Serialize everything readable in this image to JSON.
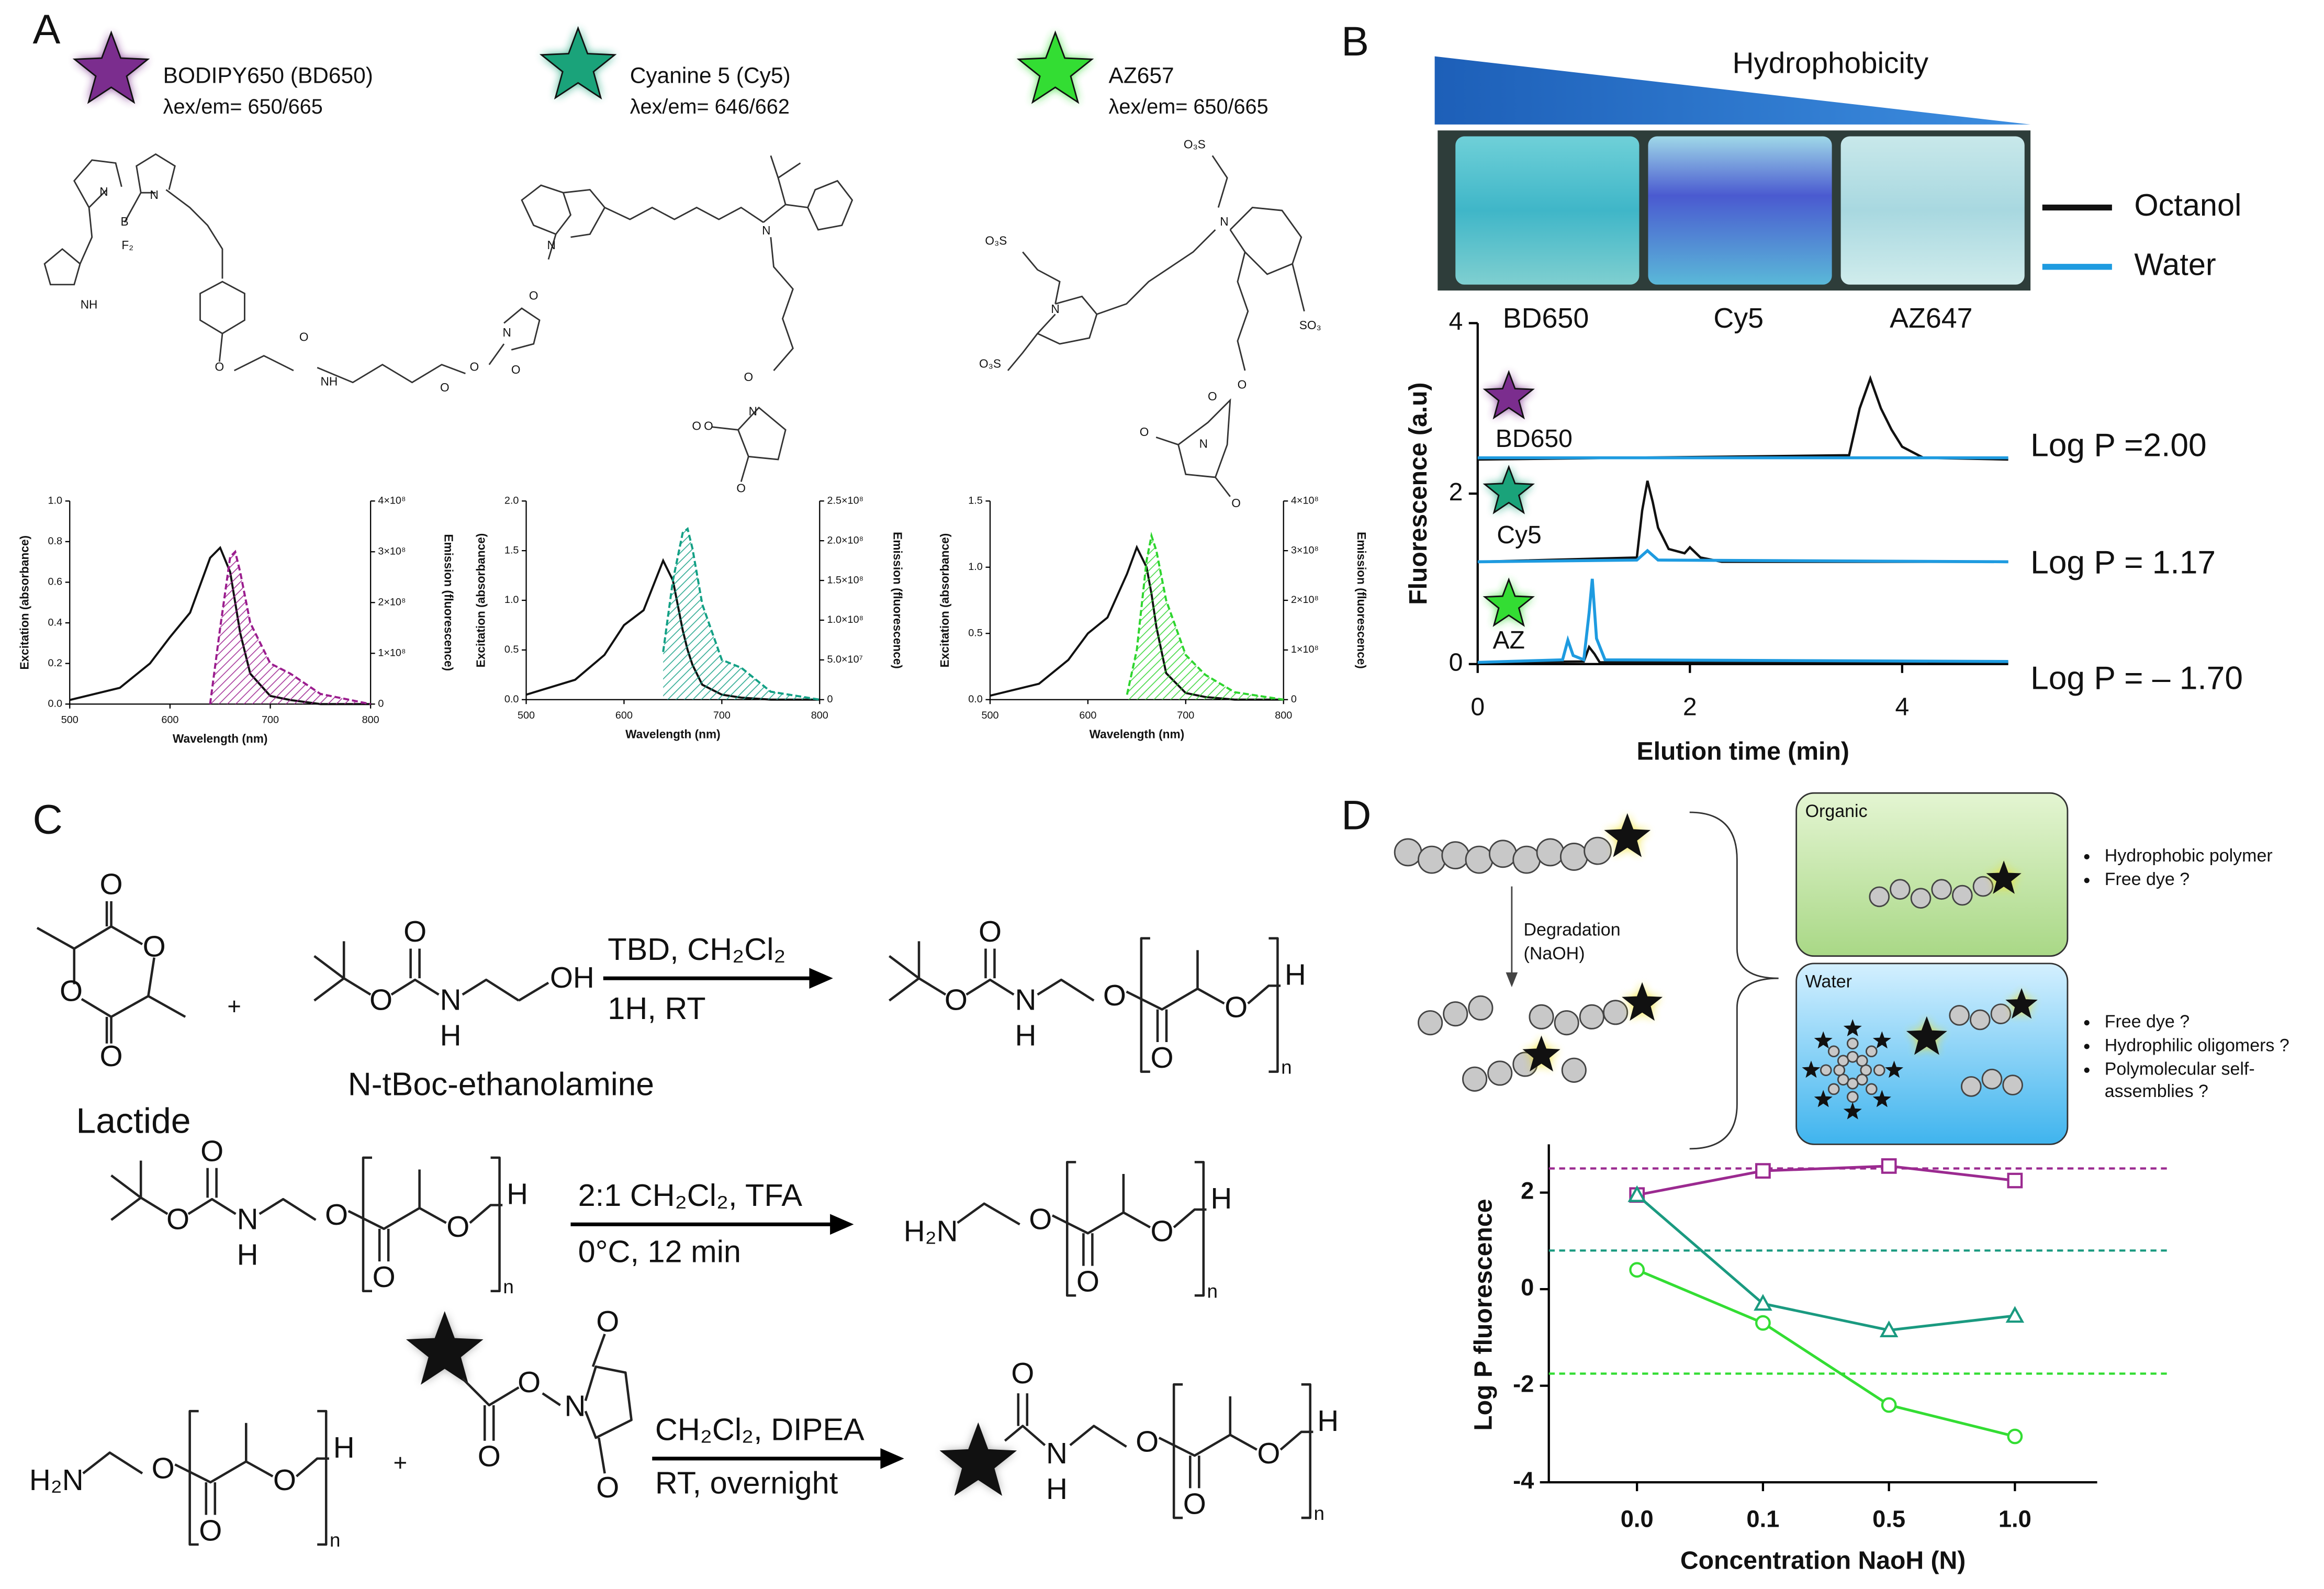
{
  "panels": {
    "labels": [
      "A",
      "B",
      "C",
      "D"
    ]
  },
  "dyes": [
    {
      "name": "BODIPY650 (BD650)",
      "lambda": "λex/em= 650/665",
      "color": "#7b2d8e"
    },
    {
      "name": "Cyanine 5 (Cy5)",
      "lambda": "λex/em= 646/662",
      "color": "#1aa37a"
    },
    {
      "name": "AZ657",
      "lambda": "λex/em= 650/665",
      "color": "#33dd33"
    }
  ],
  "structures": [
    {
      "atoms": [
        "N",
        "B",
        "N",
        "F₂",
        "NH",
        "O",
        "O",
        "NH",
        "O",
        "O",
        "N",
        "O",
        "O"
      ]
    },
    {
      "atoms": [
        "N",
        "N",
        "O",
        "O",
        "N",
        "O",
        "O"
      ]
    },
    {
      "atoms": [
        "O₃S",
        "O₃S",
        "N",
        "N",
        "SO₃",
        "O₃S",
        "O",
        "O",
        "N",
        "O",
        "O"
      ]
    }
  ],
  "chart_data": [
    {
      "type": "line",
      "xlabel": "Wavelength (nm)",
      "ylabel": "Excitation (absorbance)",
      "y2label": "Emission (fluorescence)",
      "xlim": [
        500,
        800
      ],
      "xticks": [
        500,
        600,
        700,
        800
      ],
      "ylim": [
        0,
        1
      ],
      "yticks": [
        {
          "value": 0,
          "label": "0.0"
        },
        0.2,
        0.4,
        0.6,
        0.8,
        {
          "value": 1,
          "label": "1.0"
        }
      ],
      "y2lim": [
        0,
        400000000
      ],
      "y2ticks": [
        0,
        {
          "value": 100000000,
          "label": "1×10⁸"
        },
        {
          "value": 200000000,
          "label": "2×10⁸"
        },
        {
          "value": 300000000,
          "label": "3×10⁸"
        },
        {
          "value": 400000000,
          "label": "4×10⁸"
        }
      ],
      "x": [
        500,
        550,
        580,
        600,
        620,
        640,
        650,
        660,
        665,
        670,
        680,
        700,
        720,
        750,
        800
      ],
      "series": [
        {
          "color": "#111111",
          "values": [
            0.02,
            0.08,
            0.2,
            0.33,
            0.45,
            0.72,
            0.77,
            0.65,
            0.5,
            0.35,
            0.15,
            0.04,
            0.02,
            0,
            0
          ]
        },
        {
          "color": "#9b1d8e",
          "axis": "y2",
          "dashed": true,
          "hatched": true,
          "values": [
            null,
            null,
            null,
            null,
            null,
            0,
            150000000,
            290000000,
            300000000,
            260000000,
            160000000,
            80000000,
            60000000,
            20000000,
            0
          ]
        }
      ]
    },
    {
      "type": "line",
      "xlabel": "Wavelength (nm)",
      "ylabel": "Excitation (absorbance)",
      "y2label": "Emission (fluorescence)",
      "xlim": [
        500,
        800
      ],
      "xticks": [
        500,
        600,
        700,
        800
      ],
      "ylim": [
        0,
        2
      ],
      "yticks": [
        {
          "value": 0,
          "label": "0.0"
        },
        0.5,
        {
          "value": 1,
          "label": "1.0"
        },
        1.5,
        {
          "value": 2,
          "label": "2.0"
        }
      ],
      "y2lim": [
        0,
        250000000
      ],
      "y2ticks": [
        0,
        {
          "value": 50000000,
          "label": "5.0×10⁷"
        },
        {
          "value": 100000000,
          "label": "1.0×10⁸"
        },
        {
          "value": 150000000,
          "label": "1.5×10⁸"
        },
        {
          "value": 200000000,
          "label": "2.0×10⁸"
        },
        {
          "value": 250000000,
          "label": "2.5×10⁸"
        }
      ],
      "x": [
        500,
        550,
        580,
        600,
        620,
        640,
        650,
        660,
        665,
        670,
        680,
        700,
        720,
        750,
        800
      ],
      "series": [
        {
          "color": "#111111",
          "values": [
            0.05,
            0.2,
            0.45,
            0.75,
            0.9,
            1.4,
            1.2,
            0.7,
            0.5,
            0.35,
            0.15,
            0.05,
            0.02,
            0,
            0
          ]
        },
        {
          "color": "#13a085",
          "axis": "y2",
          "dashed": true,
          "hatched": true,
          "values": [
            null,
            null,
            null,
            null,
            null,
            60000000,
            150000000,
            210000000,
            215000000,
            190000000,
            120000000,
            50000000,
            40000000,
            10000000,
            0
          ]
        }
      ]
    },
    {
      "type": "line",
      "xlabel": "Wavelength (nm)",
      "ylabel": "Excitation (absorbance)",
      "y2label": "Emission (fluorescence)",
      "xlim": [
        500,
        800
      ],
      "xticks": [
        500,
        600,
        700,
        800
      ],
      "ylim": [
        0,
        1.5
      ],
      "yticks": [
        {
          "value": 0,
          "label": "0.0"
        },
        0.5,
        {
          "value": 1,
          "label": "1.0"
        },
        1.5
      ],
      "y2lim": [
        0,
        400000000
      ],
      "y2ticks": [
        0,
        {
          "value": 100000000,
          "label": "1×10⁸"
        },
        {
          "value": 200000000,
          "label": "2×10⁸"
        },
        {
          "value": 300000000,
          "label": "3×10⁸"
        },
        {
          "value": 400000000,
          "label": "4×10⁸"
        }
      ],
      "x": [
        500,
        550,
        580,
        600,
        620,
        640,
        650,
        660,
        665,
        670,
        680,
        700,
        720,
        750,
        800
      ],
      "series": [
        {
          "color": "#111111",
          "values": [
            0.03,
            0.12,
            0.3,
            0.5,
            0.62,
            0.95,
            1.15,
            1.0,
            0.8,
            0.55,
            0.2,
            0.05,
            0.02,
            0,
            0
          ]
        },
        {
          "color": "#2ed52e",
          "axis": "y2",
          "dashed": true,
          "hatched": true,
          "values": [
            null,
            null,
            null,
            null,
            null,
            10000000,
            100000000,
            280000000,
            330000000,
            300000000,
            200000000,
            90000000,
            50000000,
            15000000,
            0
          ]
        }
      ]
    },
    {
      "type": "line",
      "xlabel": "Elution time (min)",
      "ylabel": "Fluorescence (a.u)",
      "xlim": [
        0,
        5
      ],
      "xticks": [
        0,
        2,
        4
      ],
      "ylim": [
        0,
        4
      ],
      "yticks": [
        0,
        2,
        4
      ],
      "series": [
        {
          "name": "Octanol",
          "sample": "BD650",
          "color": "#111111",
          "x": [
            0,
            3.5,
            3.6,
            3.7,
            3.8,
            3.9,
            4.0,
            4.2,
            5
          ],
          "values": [
            2.4,
            2.45,
            3.0,
            3.35,
            3.0,
            2.75,
            2.55,
            2.42,
            2.4
          ]
        },
        {
          "name": "Water",
          "sample": "BD650",
          "color": "#1e9be0",
          "x": [
            0,
            5
          ],
          "values": [
            2.42,
            2.42
          ]
        },
        {
          "name": "Octanol",
          "sample": "Cy5",
          "color": "#111111",
          "x": [
            0,
            1.5,
            1.55,
            1.6,
            1.65,
            1.7,
            1.8,
            1.95,
            2.0,
            2.1,
            2.3,
            5
          ],
          "values": [
            1.2,
            1.25,
            1.8,
            2.15,
            1.9,
            1.6,
            1.35,
            1.3,
            1.37,
            1.25,
            1.2,
            1.2
          ]
        },
        {
          "name": "Water",
          "sample": "Cy5",
          "color": "#1e9be0",
          "x": [
            0,
            1.5,
            1.6,
            1.7,
            5
          ],
          "values": [
            1.2,
            1.22,
            1.33,
            1.22,
            1.2
          ]
        },
        {
          "name": "Octanol",
          "sample": "AZ",
          "color": "#111111",
          "x": [
            0,
            1.0,
            1.05,
            1.1,
            1.15,
            5
          ],
          "values": [
            0.02,
            0.03,
            0.2,
            0.12,
            0.02,
            0.02
          ]
        },
        {
          "name": "Water",
          "sample": "AZ",
          "color": "#1e9be0",
          "x": [
            0,
            0.8,
            0.85,
            0.9,
            1.0,
            1.05,
            1.08,
            1.12,
            1.2,
            5
          ],
          "values": [
            0.02,
            0.05,
            0.28,
            0.1,
            0.05,
            0.6,
            1.0,
            0.3,
            0.05,
            0.03
          ]
        }
      ],
      "annotations": [
        {
          "sample": "BD650",
          "text": "Log P =2.00",
          "color": "#7b2d8e"
        },
        {
          "sample": "Cy5",
          "text": "Log P = 1.17",
          "color": "#1aa37a"
        },
        {
          "sample": "AZ",
          "text": "Log P = – 1.70",
          "color": "#33dd33"
        }
      ]
    },
    {
      "type": "line",
      "xlabel": "Concentration NaoH (N)",
      "ylabel": "Log P fluorescence",
      "categories": [
        "0.0",
        "0.1",
        "0.5",
        "1.0"
      ],
      "ylim": [
        -4,
        3
      ],
      "yticks": [
        -4,
        -2,
        0,
        2
      ],
      "series": [
        {
          "color": "#9b2a90",
          "marker": "square",
          "values": [
            1.95,
            2.45,
            2.55,
            2.25
          ]
        },
        {
          "color": "#1a9a80",
          "marker": "triangle",
          "values": [
            1.95,
            -0.3,
            -0.85,
            -0.55
          ]
        },
        {
          "color": "#33dd33",
          "marker": "circle",
          "values": [
            0.4,
            -0.7,
            -2.4,
            -3.05
          ]
        }
      ],
      "reference_lines": [
        {
          "value": 2.5,
          "color": "#9b2a90"
        },
        {
          "value": 0.8,
          "color": "#1a9a80"
        },
        {
          "value": -1.75,
          "color": "#33dd33"
        }
      ]
    }
  ],
  "diagram_b": {
    "top_label": "Hydrophobicity",
    "vials": [
      "BD650",
      "Cy5",
      "AZ647"
    ]
  },
  "scheme": {
    "plus": [
      "+",
      "+"
    ],
    "conditions": [
      [
        "TBD, CH₂Cl₂",
        "1H, RT"
      ],
      [
        "2:1 CH₂Cl₂, TFA",
        "0°C, 12 min"
      ],
      [
        "CH₂Cl₂, DIPEA",
        "RT, overnight"
      ]
    ],
    "molecules": [
      {
        "name": "Lactide",
        "atoms": [
          "O",
          "O",
          "O",
          "O"
        ]
      },
      {
        "name": "N-tBoc-ethanolamine",
        "atoms": [
          "O",
          "O",
          "N",
          "H",
          "OH"
        ]
      },
      {
        "atoms": [
          "O",
          "O",
          "N",
          "H",
          "O",
          "O",
          "O",
          "H",
          "n"
        ]
      },
      {
        "atoms": [
          "O",
          "O",
          "N",
          "H",
          "O",
          "O",
          "O",
          "H",
          "n"
        ]
      },
      {
        "atoms": [
          "H₂N",
          "O",
          "O",
          "O",
          "H",
          "n"
        ]
      },
      {
        "atoms": [
          "H₂N",
          "O",
          "O",
          "O",
          "H",
          "n"
        ]
      },
      {
        "atoms": [
          "O",
          "O",
          "N",
          "O",
          "O"
        ]
      },
      {
        "atoms": [
          "O",
          "N",
          "H",
          "O",
          "O",
          "O",
          "H",
          "n"
        ]
      }
    ]
  },
  "diagram_d": {
    "degradation": [
      "Degradation",
      "(NaOH)"
    ],
    "organic": "Organic",
    "water": "Water",
    "organic_notes": [
      [
        "Hydrophobic polymer"
      ],
      [
        "Free dye ?"
      ]
    ],
    "water_notes": [
      [
        "Free dye ?"
      ],
      [
        "Hydrophilic oligomers ?"
      ],
      [
        "Polymolecular self-",
        "assemblies ?"
      ]
    ]
  }
}
